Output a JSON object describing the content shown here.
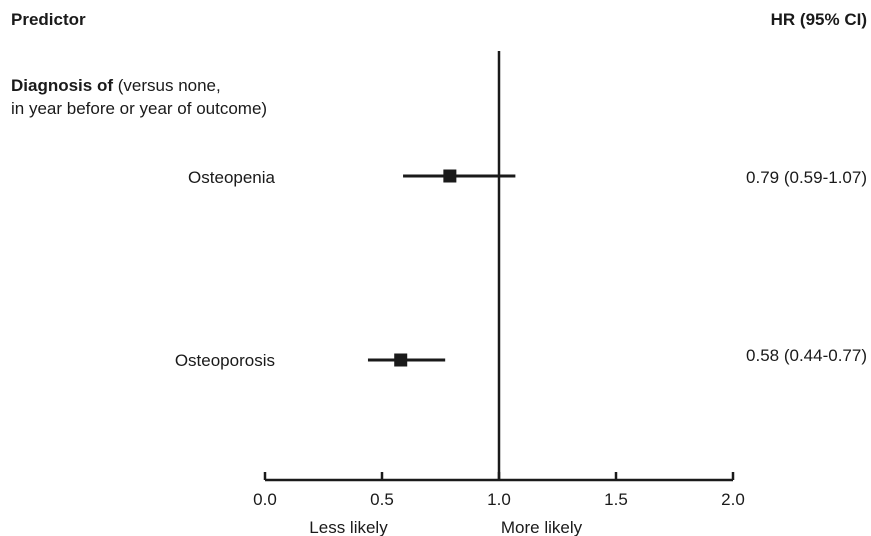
{
  "header": {
    "left": "Predictor",
    "right": "HR (95% CI)"
  },
  "section": {
    "bold": "Diagnosis of",
    "rest_line1": " (versus none,",
    "line2": "in year before or year of outcome)"
  },
  "chart_data": {
    "type": "forest",
    "xlim": [
      0.0,
      2.0
    ],
    "xticks": [
      0.0,
      0.5,
      1.0,
      1.5,
      2.0
    ],
    "xtick_labels": [
      "0.0",
      "0.5",
      "1.0",
      "1.5",
      "2.0"
    ],
    "reference_line": 1.0,
    "direction_labels": {
      "left": "Less likely",
      "right": "More likely"
    },
    "rows": [
      {
        "label": "Osteopenia",
        "hr": 0.79,
        "lower": 0.59,
        "upper": 1.07,
        "text": "0.79 (0.59-1.07)"
      },
      {
        "label": "Osteoporosis",
        "hr": 0.58,
        "lower": 0.44,
        "upper": 0.77,
        "text": "0.58 (0.44-0.77)"
      }
    ],
    "colors": {
      "ink": "#1a1a1a"
    }
  }
}
